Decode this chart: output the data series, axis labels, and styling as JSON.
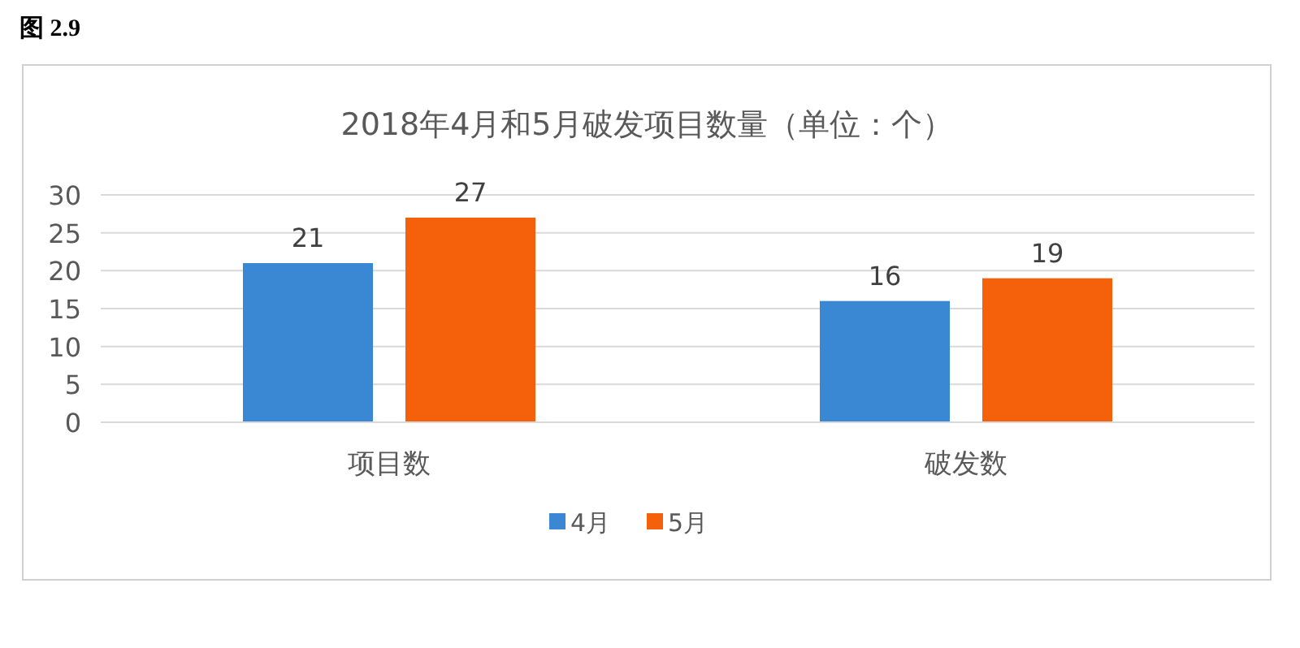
{
  "chart_data": {
    "type": "bar",
    "title": "2018年4月和5月破发项目数量（单位：个）",
    "categories": [
      "项目数",
      "破发数"
    ],
    "series": [
      {
        "name": "4月",
        "color": "#3a87d4",
        "values": [
          21,
          16
        ]
      },
      {
        "name": "5月",
        "color": "#f5600a",
        "values": [
          27,
          19
        ]
      }
    ],
    "ylim": [
      0,
      30
    ],
    "yticks": [
      0,
      5,
      10,
      15,
      20,
      25,
      30
    ],
    "grid": "y",
    "legend": "bottom",
    "data_labels": true,
    "annotations": [
      "图 2.9"
    ]
  }
}
